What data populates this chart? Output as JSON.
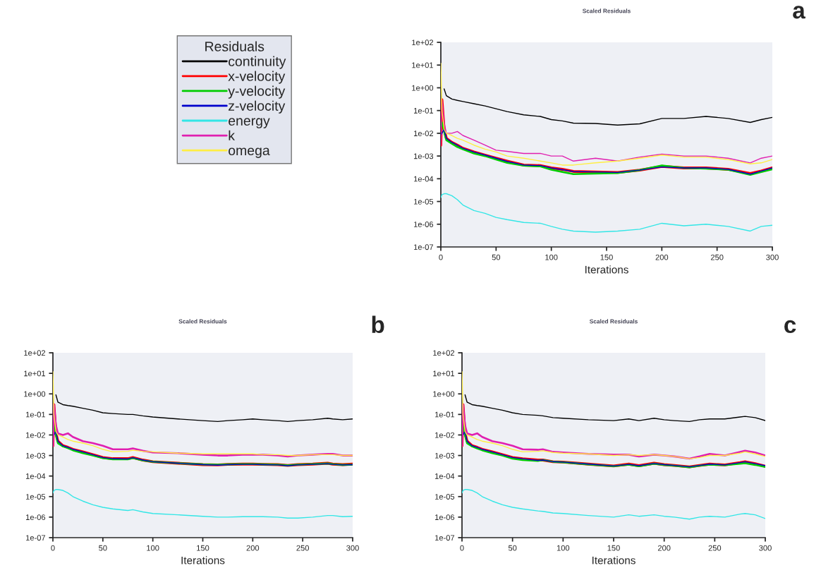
{
  "chart_data": [
    {
      "type": "line",
      "title": "Scaled Residuals",
      "xlabel": "Iterations",
      "legend_title": "Residuals",
      "legend": "left",
      "grid": false,
      "log": "y",
      "annotations": [
        "a"
      ],
      "xlim": [
        0,
        300
      ],
      "xticks": [
        0,
        50,
        100,
        150,
        200,
        250,
        300
      ],
      "ylim": [
        1e-07,
        100
      ],
      "yticks": [
        {
          "value": 1e-07,
          "label": "1e-07"
        },
        {
          "value": 1e-06,
          "label": "1e-06"
        },
        {
          "value": 1e-05,
          "label": "1e-05"
        },
        {
          "value": 0.0001,
          "label": "1e-04"
        },
        {
          "value": 0.001,
          "label": "1e-03"
        },
        {
          "value": 0.01,
          "label": "1e-02"
        },
        {
          "value": 0.1,
          "label": "1e-01"
        },
        {
          "value": 1,
          "label": "1e+00"
        },
        {
          "value": 10,
          "label": "1e+01"
        },
        {
          "value": 100,
          "label": "1e+02"
        }
      ],
      "x": [
        0,
        1,
        3,
        5,
        10,
        15,
        20,
        30,
        40,
        50,
        60,
        75,
        90,
        100,
        110,
        120,
        140,
        160,
        180,
        200,
        220,
        240,
        260,
        280,
        290,
        300
      ],
      "series": [
        {
          "name": "continuity",
          "color": "#000000",
          "values": [
            null,
            null,
            0.9,
            0.45,
            0.32,
            0.28,
            0.25,
            0.2,
            0.16,
            0.12,
            0.09,
            0.065,
            0.055,
            0.04,
            0.035,
            0.028,
            0.027,
            0.023,
            0.026,
            0.045,
            0.045,
            0.055,
            0.045,
            0.03,
            0.04,
            0.05
          ]
        },
        {
          "name": "x-velocity",
          "color": "#ff0000",
          "values": [
            0.003,
            0.3,
            0.015,
            0.006,
            0.004,
            0.003,
            0.0022,
            0.0015,
            0.0011,
            0.0008,
            0.0006,
            0.0004,
            0.00038,
            0.0003,
            0.00026,
            0.00021,
            0.0002,
            0.00019,
            0.00024,
            0.00035,
            0.0003,
            0.0003,
            0.00026,
            0.00017,
            0.00022,
            0.0003
          ]
        },
        {
          "name": "y-velocity",
          "color": "#00cc00",
          "values": [
            0.02,
            0.03,
            0.012,
            0.005,
            0.0035,
            0.0025,
            0.002,
            0.0013,
            0.001,
            0.0007,
            0.0005,
            0.00038,
            0.00035,
            0.00025,
            0.0002,
            0.00016,
            0.00017,
            0.00018,
            0.00024,
            0.00038,
            0.0003,
            0.00028,
            0.00025,
            0.00015,
            0.0002,
            0.00026
          ]
        },
        {
          "name": "z-velocity",
          "color": "#0000cc",
          "values": [
            0.008,
            0.01,
            0.015,
            0.006,
            0.004,
            0.003,
            0.0022,
            0.0015,
            0.0011,
            0.0008,
            0.00058,
            0.0004,
            0.00038,
            0.0003,
            0.00025,
            0.00021,
            0.0002,
            0.00019,
            0.00024,
            0.00033,
            0.0003,
            0.0003,
            0.00026,
            0.00016,
            0.00022,
            0.0003
          ]
        },
        {
          "name": "energy",
          "color": "#33e6e6",
          "values": [
            1.5e-05,
            2e-05,
            2.2e-05,
            2.2e-05,
            1.8e-05,
            1.2e-05,
            7e-06,
            4e-06,
            3e-06,
            2e-06,
            1.6e-06,
            1.2e-06,
            1.1e-06,
            8e-07,
            6e-07,
            5e-07,
            4.5e-07,
            5e-07,
            6e-07,
            1.1e-06,
            8.5e-07,
            1e-06,
            8e-07,
            5e-07,
            8e-07,
            9e-07
          ]
        },
        {
          "name": "k",
          "color": "#e020b0",
          "values": [
            0.003,
            0.3,
            0.03,
            0.01,
            0.01,
            0.012,
            0.008,
            0.005,
            0.003,
            0.0018,
            0.0016,
            0.0013,
            0.0013,
            0.001,
            0.001,
            0.0006,
            0.0008,
            0.0006,
            0.0009,
            0.0012,
            0.001,
            0.001,
            0.0008,
            0.0005,
            0.0008,
            0.001
          ]
        },
        {
          "name": "omega",
          "color": "#ffee44",
          "values": [
            12,
            0.1,
            0.015,
            0.01,
            0.008,
            0.006,
            0.005,
            0.003,
            0.002,
            0.0015,
            0.001,
            0.0008,
            0.0006,
            0.0005,
            0.0004,
            0.0004,
            0.0005,
            0.0006,
            0.0008,
            0.0011,
            0.0009,
            0.0009,
            0.0007,
            0.00045,
            0.0005,
            0.0007
          ]
        }
      ]
    },
    {
      "type": "line",
      "title": "Scaled Residuals",
      "xlabel": "Iterations",
      "grid": false,
      "log": "y",
      "annotations": [
        "b"
      ],
      "xlim": [
        0,
        300
      ],
      "xticks": [
        0,
        50,
        100,
        150,
        200,
        250,
        300
      ],
      "ylim": [
        1e-07,
        100
      ],
      "yticks": [
        {
          "value": 1e-07,
          "label": "1e-07"
        },
        {
          "value": 1e-06,
          "label": "1e-06"
        },
        {
          "value": 1e-05,
          "label": "1e-05"
        },
        {
          "value": 0.0001,
          "label": "1e-04"
        },
        {
          "value": 0.001,
          "label": "1e-03"
        },
        {
          "value": 0.01,
          "label": "1e-02"
        },
        {
          "value": 0.1,
          "label": "1e-01"
        },
        {
          "value": 1,
          "label": "1e+00"
        },
        {
          "value": 10,
          "label": "1e+01"
        },
        {
          "value": 100,
          "label": "1e+02"
        }
      ],
      "x": [
        0,
        1,
        3,
        5,
        10,
        15,
        20,
        30,
        40,
        50,
        60,
        75,
        80,
        90,
        100,
        125,
        150,
        165,
        175,
        190,
        200,
        210,
        225,
        235,
        245,
        260,
        275,
        280,
        290,
        300
      ],
      "series": [
        {
          "color": "#000000",
          "values": [
            null,
            null,
            0.9,
            0.4,
            0.3,
            0.27,
            0.25,
            0.2,
            0.16,
            0.12,
            0.11,
            0.1,
            0.1,
            0.085,
            0.075,
            0.06,
            0.05,
            0.045,
            0.05,
            0.055,
            0.06,
            0.055,
            0.05,
            0.045,
            0.05,
            0.055,
            0.065,
            0.06,
            0.055,
            0.06
          ]
        },
        {
          "color": "#ff0000",
          "values": [
            0.003,
            0.3,
            0.012,
            0.005,
            0.003,
            0.0025,
            0.002,
            0.0015,
            0.0011,
            0.0008,
            0.0007,
            0.0007,
            0.0008,
            0.0006,
            0.0005,
            0.00042,
            0.00036,
            0.00035,
            0.00037,
            0.00038,
            0.00038,
            0.00037,
            0.00036,
            0.00033,
            0.00036,
            0.00038,
            0.00042,
            0.00038,
            0.00036,
            0.00038
          ]
        },
        {
          "color": "#00cc00",
          "values": [
            0.02,
            0.03,
            0.01,
            0.004,
            0.0028,
            0.0023,
            0.0018,
            0.0013,
            0.001,
            0.00075,
            0.00065,
            0.00065,
            0.00075,
            0.00058,
            0.0005,
            0.00042,
            0.00037,
            0.00036,
            0.00037,
            0.00038,
            0.00038,
            0.00037,
            0.00036,
            0.00033,
            0.00036,
            0.00038,
            0.00041,
            0.00038,
            0.00035,
            0.00036
          ]
        },
        {
          "color": "#0000cc",
          "values": [
            0.008,
            0.01,
            0.015,
            0.005,
            0.003,
            0.0025,
            0.002,
            0.0015,
            0.0011,
            0.0008,
            0.0007,
            0.00068,
            0.00078,
            0.0006,
            0.0005,
            0.00042,
            0.00036,
            0.00034,
            0.00036,
            0.00037,
            0.00037,
            0.00036,
            0.00035,
            0.00032,
            0.00035,
            0.00037,
            0.0004,
            0.00037,
            0.00035,
            0.00036
          ]
        },
        {
          "color": "#33e6e6",
          "values": [
            1.5e-05,
            2e-05,
            2.2e-05,
            2.2e-05,
            2e-05,
            1.5e-05,
            1e-05,
            6e-06,
            4e-06,
            3e-06,
            2.5e-06,
            2.1e-06,
            2.3e-06,
            1.8e-06,
            1.5e-06,
            1.3e-06,
            1.1e-06,
            1e-06,
            1e-06,
            1.05e-06,
            1.05e-06,
            1.05e-06,
            1e-06,
            9e-07,
            9e-07,
            1e-06,
            1.2e-06,
            1.2e-06,
            1.05e-06,
            1.1e-06
          ]
        },
        {
          "color": "#e020b0",
          "values": [
            0.003,
            0.3,
            0.03,
            0.012,
            0.01,
            0.012,
            0.008,
            0.005,
            0.004,
            0.003,
            0.002,
            0.002,
            0.0022,
            0.0017,
            0.0014,
            0.0013,
            0.0011,
            0.001,
            0.001,
            0.0011,
            0.0011,
            0.0011,
            0.001,
            0.0009,
            0.001,
            0.0011,
            0.0012,
            0.0012,
            0.001,
            0.001
          ]
        },
        {
          "color": "#ffee44",
          "values": [
            12,
            0.1,
            0.015,
            0.01,
            0.008,
            0.006,
            0.005,
            0.004,
            0.003,
            0.002,
            0.0015,
            0.0016,
            0.0018,
            0.0016,
            0.0015,
            0.0013,
            0.0012,
            0.0012,
            0.0012,
            0.0012,
            0.0012,
            0.0011,
            0.0011,
            0.001,
            0.001,
            0.0011,
            0.0011,
            0.0011,
            0.001,
            0.001
          ]
        }
      ]
    },
    {
      "type": "line",
      "title": "Scaled Residuals",
      "xlabel": "Iterations",
      "grid": false,
      "log": "y",
      "annotations": [
        "c"
      ],
      "xlim": [
        0,
        300
      ],
      "xticks": [
        0,
        50,
        100,
        150,
        200,
        250,
        300
      ],
      "ylim": [
        1e-07,
        100
      ],
      "yticks": [
        {
          "value": 1e-07,
          "label": "1e-07"
        },
        {
          "value": 1e-06,
          "label": "1e-06"
        },
        {
          "value": 1e-05,
          "label": "1e-05"
        },
        {
          "value": 0.0001,
          "label": "1e-04"
        },
        {
          "value": 0.001,
          "label": "1e-03"
        },
        {
          "value": 0.01,
          "label": "1e-02"
        },
        {
          "value": 0.1,
          "label": "1e-01"
        },
        {
          "value": 1,
          "label": "1e+00"
        },
        {
          "value": 10,
          "label": "1e+01"
        },
        {
          "value": 100,
          "label": "1e+02"
        }
      ],
      "x": [
        0,
        1,
        3,
        5,
        10,
        15,
        20,
        30,
        40,
        50,
        60,
        75,
        80,
        90,
        100,
        125,
        150,
        165,
        175,
        190,
        200,
        210,
        225,
        235,
        245,
        260,
        275,
        280,
        290,
        300
      ],
      "series": [
        {
          "color": "#000000",
          "values": [
            null,
            null,
            0.9,
            0.4,
            0.3,
            0.27,
            0.25,
            0.2,
            0.16,
            0.12,
            0.1,
            0.09,
            0.085,
            0.07,
            0.065,
            0.055,
            0.05,
            0.06,
            0.05,
            0.065,
            0.055,
            0.05,
            0.045,
            0.055,
            0.06,
            0.06,
            0.075,
            0.08,
            0.07,
            0.05
          ]
        },
        {
          "color": "#ff0000",
          "values": [
            0.003,
            0.3,
            0.012,
            0.005,
            0.003,
            0.0025,
            0.002,
            0.0015,
            0.0011,
            0.0008,
            0.0007,
            0.0006,
            0.0006,
            0.0005,
            0.00048,
            0.00038,
            0.00031,
            0.00038,
            0.00032,
            0.00042,
            0.00036,
            0.00033,
            0.00028,
            0.00033,
            0.00038,
            0.00035,
            0.00045,
            0.0005,
            0.0004,
            0.0003
          ]
        },
        {
          "color": "#00cc00",
          "values": [
            0.02,
            0.03,
            0.01,
            0.004,
            0.0028,
            0.0022,
            0.0018,
            0.0013,
            0.001,
            0.0007,
            0.0006,
            0.00055,
            0.0006,
            0.0005,
            0.00047,
            0.00037,
            0.0003,
            0.00036,
            0.0003,
            0.0004,
            0.00035,
            0.00032,
            0.00027,
            0.00032,
            0.00036,
            0.00034,
            0.0004,
            0.00042,
            0.00035,
            0.00028
          ]
        },
        {
          "color": "#0000cc",
          "values": [
            0.008,
            0.01,
            0.015,
            0.005,
            0.003,
            0.0025,
            0.002,
            0.0015,
            0.0011,
            0.0008,
            0.0007,
            0.00058,
            0.0006,
            0.0005,
            0.00048,
            0.00038,
            0.00031,
            0.00037,
            0.00032,
            0.00041,
            0.00036,
            0.00033,
            0.00028,
            0.00033,
            0.00038,
            0.00035,
            0.00045,
            0.0005,
            0.0004,
            0.00032
          ]
        },
        {
          "color": "#33e6e6",
          "values": [
            1.5e-05,
            2e-05,
            2.2e-05,
            2.2e-05,
            2e-05,
            1.5e-05,
            1e-05,
            6e-06,
            4e-06,
            3e-06,
            2.5e-06,
            2e-06,
            1.9e-06,
            1.6e-06,
            1.5e-06,
            1.2e-06,
            1e-06,
            1.3e-06,
            1.1e-06,
            1.3e-06,
            1.1e-06,
            1e-06,
            8e-07,
            1e-06,
            1.1e-06,
            1e-06,
            1.4e-06,
            1.5e-06,
            1.3e-06,
            8.5e-07
          ]
        },
        {
          "color": "#e020b0",
          "values": [
            0.003,
            0.3,
            0.03,
            0.012,
            0.01,
            0.012,
            0.008,
            0.005,
            0.004,
            0.003,
            0.002,
            0.0019,
            0.002,
            0.0015,
            0.0014,
            0.0012,
            0.0011,
            0.0011,
            0.0009,
            0.0011,
            0.001,
            0.0009,
            0.0007,
            0.0009,
            0.0012,
            0.001,
            0.0015,
            0.0017,
            0.0014,
            0.001
          ]
        },
        {
          "color": "#ffee44",
          "values": [
            12,
            0.1,
            0.015,
            0.01,
            0.008,
            0.006,
            0.005,
            0.004,
            0.003,
            0.002,
            0.0015,
            0.0016,
            0.0017,
            0.0014,
            0.0013,
            0.0012,
            0.001,
            0.0011,
            0.001,
            0.0011,
            0.001,
            0.0009,
            0.0007,
            0.0008,
            0.001,
            0.001,
            0.0013,
            0.0015,
            0.0012,
            0.0009
          ]
        }
      ]
    }
  ]
}
